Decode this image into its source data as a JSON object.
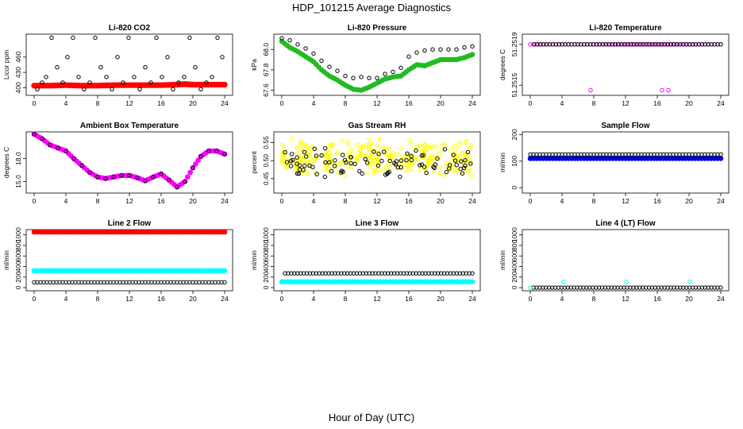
{
  "figure": {
    "title": "HDP_101215  Average Diagnostics",
    "xlabel": "Hour of Day (UTC)"
  },
  "colors": {
    "black": "#000000",
    "red": "#ff0000",
    "green": "#22bb22",
    "magenta": "#ff00ff",
    "yellow": "#ffff00",
    "blue": "#0000dd",
    "cyan": "#00ffff"
  },
  "chart_data": [
    {
      "id": "co2",
      "type": "scatter",
      "title": "Li-820 CO2",
      "ylabel": "Licor ppm",
      "xlim": [
        0,
        24
      ],
      "ylim": [
        385,
        505
      ],
      "xticks": [
        "0",
        "4",
        "8",
        "12",
        "16",
        "20",
        "24"
      ],
      "yticks": [
        {
          "v": 400,
          "label": "400"
        },
        {
          "v": 430,
          "label": "430"
        },
        {
          "v": 460,
          "label": "460"
        }
      ],
      "series": [
        {
          "name": "red band",
          "color": "red",
          "style": "band",
          "x": [
            0,
            2,
            4,
            6,
            8,
            10,
            12,
            14,
            16,
            18,
            19,
            20,
            22,
            24
          ],
          "y": [
            404,
            404,
            405,
            404,
            404,
            405,
            405,
            405,
            405,
            406,
            407,
            406,
            406,
            406
          ]
        },
        {
          "name": "black levels",
          "color": "black",
          "style": "hollow",
          "levels": [
            498,
            475,
            460,
            440,
            421,
            410,
            397
          ],
          "x": [
            0.4,
            1.0,
            1.5,
            2.2,
            2.9,
            3.6,
            4.2,
            4.9,
            5.6,
            6.3,
            7.0,
            7.7,
            8.4,
            9.1,
            9.8,
            10.5,
            11.2,
            11.9,
            12.6,
            13.3,
            14.0,
            14.7,
            15.4,
            16.1,
            16.8,
            17.5,
            18.2,
            18.9,
            19.6,
            20.3,
            21.0,
            21.7,
            22.4,
            23.1,
            23.7
          ],
          "y": [
            397,
            410,
            421,
            498,
            440,
            410,
            460,
            498,
            421,
            397,
            410,
            498,
            440,
            421,
            397,
            460,
            410,
            498,
            421,
            397,
            440,
            410,
            498,
            421,
            460,
            397,
            410,
            421,
            498,
            440,
            397,
            410,
            421,
            498,
            460
          ]
        }
      ]
    },
    {
      "id": "pressure",
      "type": "scatter",
      "title": "Li-820 Pressure",
      "ylabel": "kPa",
      "xlim": [
        0,
        24
      ],
      "ylim": [
        67.55,
        68.15
      ],
      "xticks": [
        "0",
        "4",
        "8",
        "12",
        "16",
        "20",
        "24"
      ],
      "yticks": [
        {
          "v": 67.6,
          "label": "67.6"
        },
        {
          "v": 67.8,
          "label": "67.8"
        },
        {
          "v": 68.0,
          "label": "68.0"
        }
      ],
      "series": [
        {
          "name": "green",
          "color": "green",
          "style": "filled",
          "x": [
            0,
            1,
            2,
            3,
            4,
            5,
            6,
            7,
            8,
            9,
            10,
            11,
            12,
            13,
            14,
            15,
            16,
            17,
            18,
            19,
            20,
            21,
            22,
            23,
            24
          ],
          "y": [
            68.08,
            68.02,
            67.98,
            67.93,
            67.88,
            67.8,
            67.74,
            67.7,
            67.65,
            67.61,
            67.6,
            67.63,
            67.67,
            67.71,
            67.73,
            67.74,
            67.8,
            67.85,
            67.84,
            67.87,
            67.9,
            67.9,
            67.9,
            67.92,
            67.95
          ]
        },
        {
          "name": "black",
          "color": "black",
          "style": "hollow",
          "x": [
            0,
            1,
            2,
            3,
            4,
            5,
            6,
            7,
            8,
            9,
            10,
            11,
            12,
            13,
            14,
            15,
            16,
            17,
            18,
            19,
            20,
            21,
            22,
            23,
            24
          ],
          "y": [
            68.11,
            68.09,
            68.05,
            68.01,
            67.96,
            67.89,
            67.83,
            67.79,
            67.74,
            67.72,
            67.73,
            67.72,
            67.72,
            67.76,
            67.78,
            67.82,
            67.93,
            67.97,
            67.99,
            68.0,
            68.0,
            68.0,
            68.0,
            68.02,
            68.03
          ]
        }
      ]
    },
    {
      "id": "temp",
      "type": "scatter",
      "title": "Li-820 Temperature",
      "ylabel": "degrees C",
      "xlim": [
        0,
        24
      ],
      "ylim": [
        51.2514,
        51.252
      ],
      "xticks": [
        "0",
        "4",
        "8",
        "12",
        "16",
        "20",
        "24"
      ],
      "yticks": [
        {
          "v": 51.2515,
          "label": "51.2515"
        },
        {
          "v": 51.2519,
          "label": "51.2519"
        }
      ],
      "series": [
        {
          "name": "magenta",
          "color": "magenta",
          "style": "hollow",
          "x": [
            0,
            24
          ],
          "y": [
            51.2519,
            51.2519
          ],
          "dense": true
        },
        {
          "name": "black",
          "color": "black",
          "style": "hollow",
          "x": [
            0.5,
            24
          ],
          "y": [
            51.2519,
            51.2519
          ],
          "dense": true
        },
        {
          "name": "magenta outliers",
          "color": "magenta",
          "style": "hollow",
          "x": [
            7.6,
            16.6,
            17.4
          ],
          "y": [
            51.25145,
            51.25145,
            51.25145
          ]
        }
      ]
    },
    {
      "id": "ambient",
      "type": "scatter",
      "title": "Ambient Box Temperature",
      "ylabel": "degrees C",
      "xlim": [
        0,
        24
      ],
      "ylim": [
        13.5,
        21.5
      ],
      "xticks": [
        "0",
        "4",
        "8",
        "12",
        "16",
        "20",
        "24"
      ],
      "yticks": [
        {
          "v": 15.0,
          "label": "15.0"
        },
        {
          "v": 18.0,
          "label": "18.0"
        }
      ],
      "series": [
        {
          "name": "magenta",
          "color": "magenta",
          "style": "filled",
          "x": [
            0,
            1,
            2,
            3,
            4,
            5,
            6,
            7,
            8,
            9,
            10,
            11,
            12,
            13,
            14,
            15,
            16,
            17,
            18,
            19,
            20,
            21,
            22,
            23,
            24
          ],
          "y": [
            21.2,
            20.6,
            19.8,
            19.4,
            19.0,
            18.0,
            17.1,
            16.2,
            15.6,
            15.4,
            15.6,
            15.8,
            15.8,
            15.5,
            15.1,
            15.6,
            16.0,
            15.2,
            14.3,
            15.0,
            16.8,
            18.3,
            19.0,
            19.0,
            18.6
          ]
        },
        {
          "name": "black",
          "color": "black",
          "style": "hollow",
          "x": [
            0,
            1,
            2,
            3,
            4,
            5,
            6,
            7,
            8,
            9,
            10,
            11,
            12,
            13,
            14,
            15,
            16,
            17,
            18,
            19,
            20,
            21,
            22,
            23,
            24
          ],
          "y": [
            21.2,
            20.6,
            19.8,
            19.4,
            19.0,
            18.0,
            17.1,
            16.2,
            15.6,
            15.4,
            15.6,
            15.8,
            15.8,
            15.5,
            15.1,
            15.6,
            16.0,
            15.2,
            14.3,
            15.0,
            16.8,
            18.3,
            19.0,
            19.0,
            18.6
          ]
        }
      ]
    },
    {
      "id": "rh",
      "type": "scatter",
      "title": "Gas Stream RH",
      "ylabel": "percent",
      "xlim": [
        0,
        24
      ],
      "ylim": [
        0.41,
        0.58
      ],
      "xticks": [
        "0",
        "4",
        "8",
        "12",
        "16",
        "20",
        "24"
      ],
      "yticks": [
        {
          "v": 0.45,
          "label": "0.45"
        },
        {
          "v": 0.5,
          "label": "0.50"
        },
        {
          "v": 0.55,
          "label": "0.55"
        }
      ],
      "series": [
        {
          "name": "yellow",
          "color": "yellow",
          "style": "hollow",
          "noise": {
            "mean": 0.51,
            "spread": 0.035,
            "count": 320,
            "seed": 7
          }
        },
        {
          "name": "black",
          "color": "black",
          "style": "hollow",
          "noise": {
            "mean": 0.495,
            "spread": 0.028,
            "count": 90,
            "seed": 3
          }
        }
      ]
    },
    {
      "id": "sample",
      "type": "scatter",
      "title": "Sample Flow",
      "ylabel": "ml/min",
      "xlim": [
        0,
        24
      ],
      "ylim": [
        -20,
        210
      ],
      "xticks": [
        "0",
        "4",
        "8",
        "12",
        "16",
        "20",
        "24"
      ],
      "yticks": [
        {
          "v": 0,
          "label": "0"
        },
        {
          "v": 100,
          "label": "100"
        },
        {
          "v": 200,
          "label": "200"
        }
      ],
      "series": [
        {
          "name": "blue",
          "color": "blue",
          "style": "filled",
          "x": [
            0,
            24
          ],
          "y": [
            110,
            110
          ],
          "dense": true
        },
        {
          "name": "black",
          "color": "black",
          "style": "hollow",
          "x": [
            0,
            24
          ],
          "y": [
            125,
            125
          ],
          "dense": true
        }
      ]
    },
    {
      "id": "line2",
      "type": "scatter",
      "title": "Line 2 Flow",
      "ylabel": "ml/min",
      "xlim": [
        0,
        24
      ],
      "ylim": [
        -60,
        1100
      ],
      "xticks": [
        "0",
        "4",
        "8",
        "12",
        "16",
        "20",
        "24"
      ],
      "yticks": [
        {
          "v": 0,
          "label": "0"
        },
        {
          "v": 200,
          "label": "200"
        },
        {
          "v": 400,
          "label": "400"
        },
        {
          "v": 600,
          "label": "600"
        },
        {
          "v": 800,
          "label": "800"
        },
        {
          "v": 1000,
          "label": "1000"
        }
      ],
      "series": [
        {
          "name": "red",
          "color": "red",
          "style": "filled",
          "x": [
            0,
            24
          ],
          "y": [
            1055,
            1055
          ],
          "dense": true
        },
        {
          "name": "cyan",
          "color": "cyan",
          "style": "filled",
          "x": [
            0,
            24
          ],
          "y": [
            320,
            320
          ],
          "dense": true
        },
        {
          "name": "black",
          "color": "black",
          "style": "hollow",
          "x": [
            0,
            24
          ],
          "y": [
            100,
            100
          ],
          "dense": true
        }
      ]
    },
    {
      "id": "line3",
      "type": "scatter",
      "title": "Line 3 Flow",
      "ylabel": "ml/min",
      "xlim": [
        0,
        24
      ],
      "ylim": [
        -60,
        1100
      ],
      "xticks": [
        "0",
        "4",
        "8",
        "12",
        "16",
        "20",
        "24"
      ],
      "yticks": [
        {
          "v": 0,
          "label": "0"
        },
        {
          "v": 200,
          "label": "200"
        },
        {
          "v": 400,
          "label": "400"
        },
        {
          "v": 600,
          "label": "600"
        },
        {
          "v": 800,
          "label": "800"
        },
        {
          "v": 1000,
          "label": "1000"
        }
      ],
      "series": [
        {
          "name": "cyan",
          "color": "cyan",
          "style": "filled",
          "x": [
            0,
            24
          ],
          "y": [
            110,
            110
          ],
          "dense": true
        },
        {
          "name": "black",
          "color": "black",
          "style": "hollow",
          "x": [
            0.4,
            24
          ],
          "y": [
            270,
            270
          ],
          "dense": true
        }
      ]
    },
    {
      "id": "line4",
      "type": "scatter",
      "title": "Line 4 (LT) Flow",
      "ylabel": "ml/min",
      "xlim": [
        0,
        24
      ],
      "ylim": [
        -60,
        1100
      ],
      "xticks": [
        "0",
        "4",
        "8",
        "12",
        "16",
        "20",
        "24"
      ],
      "yticks": [
        {
          "v": 0,
          "label": "0"
        },
        {
          "v": 200,
          "label": "200"
        },
        {
          "v": 400,
          "label": "400"
        },
        {
          "v": 600,
          "label": "600"
        },
        {
          "v": 800,
          "label": "800"
        },
        {
          "v": 1000,
          "label": "1000"
        }
      ],
      "series": [
        {
          "name": "black",
          "color": "black",
          "style": "hollow",
          "x": [
            0.4,
            24
          ],
          "y": [
            0,
            0
          ],
          "dense": true
        },
        {
          "name": "cyan",
          "color": "cyan",
          "style": "hollow",
          "x": [
            0,
            4.2,
            12.1,
            20.1
          ],
          "y": [
            0,
            110,
            110,
            110
          ]
        }
      ]
    }
  ]
}
